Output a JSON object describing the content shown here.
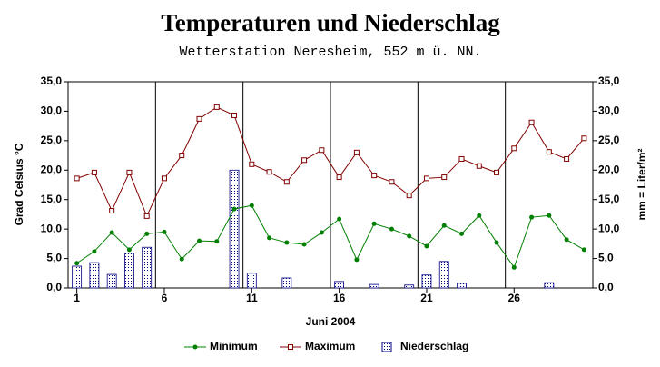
{
  "chart_data": {
    "type": "line",
    "title": "Temperaturen und  Niederschlag",
    "subtitle": "Wetterstation Neresheim, 552 m ü. NN.",
    "xlabel": "Juni 2004",
    "ylabel": "Grad Celsius °C",
    "y2label": "mm = Liter/m²",
    "x": [
      1,
      2,
      3,
      4,
      5,
      6,
      7,
      8,
      9,
      10,
      11,
      12,
      13,
      14,
      15,
      16,
      17,
      18,
      19,
      20,
      21,
      22,
      23,
      24,
      25,
      26,
      27,
      28,
      29,
      30
    ],
    "xlim": [
      0.5,
      30.5
    ],
    "xticks": [
      1,
      6,
      11,
      16,
      21,
      26
    ],
    "ylim": [
      0,
      35
    ],
    "yticks": [
      {
        "value": 0,
        "label": "0,0"
      },
      {
        "value": 5,
        "label": "5,0"
      },
      {
        "value": 10,
        "label": "10,0"
      },
      {
        "value": 15,
        "label": "15,0"
      },
      {
        "value": 20,
        "label": "20,0"
      },
      {
        "value": 25,
        "label": "25,0"
      },
      {
        "value": 30,
        "label": "30,0"
      },
      {
        "value": 35,
        "label": "35,0"
      }
    ],
    "y2lim": [
      0,
      35
    ],
    "y2ticks": [
      {
        "value": 0,
        "label": "0,0"
      },
      {
        "value": 5,
        "label": "5,0"
      },
      {
        "value": 10,
        "label": "10,0"
      },
      {
        "value": 15,
        "label": "15,0"
      },
      {
        "value": 20,
        "label": "20,0"
      },
      {
        "value": 25,
        "label": "25,0"
      },
      {
        "value": 30,
        "label": "30,0"
      },
      {
        "value": 35,
        "label": "35,0"
      }
    ],
    "series": [
      {
        "name": "Minimum",
        "type": "line",
        "marker": "circle",
        "color": "#008000",
        "values": [
          4.2,
          6.2,
          9.4,
          6.5,
          9.2,
          9.5,
          4.9,
          8.0,
          7.9,
          13.4,
          14.0,
          8.5,
          7.7,
          7.4,
          9.4,
          11.7,
          4.8,
          10.9,
          10.0,
          8.8,
          7.1,
          10.6,
          9.2,
          12.3,
          7.7,
          3.5,
          12.0,
          12.3,
          8.2,
          6.5
        ]
      },
      {
        "name": "Maximum",
        "type": "line",
        "marker": "square",
        "color": "#800000",
        "values": [
          18.6,
          19.6,
          13.1,
          19.6,
          12.2,
          18.6,
          22.5,
          28.7,
          30.7,
          29.3,
          21.0,
          19.7,
          18.0,
          21.7,
          23.4,
          18.8,
          23.0,
          19.1,
          18.0,
          15.7,
          18.6,
          18.8,
          21.9,
          20.7,
          19.6,
          23.7,
          28.1,
          23.1,
          21.9,
          25.4
        ]
      },
      {
        "name": "Niederschlag",
        "type": "bar",
        "axis": "y2",
        "color": "#000080",
        "values": [
          3.7,
          4.3,
          2.3,
          5.9,
          6.9,
          0,
          0,
          0,
          0,
          20.0,
          2.5,
          0,
          1.7,
          0,
          0,
          1.1,
          0,
          0.6,
          0,
          0.5,
          2.2,
          4.5,
          0.8,
          0,
          0,
          0,
          0,
          0.9,
          0,
          0
        ]
      }
    ]
  }
}
